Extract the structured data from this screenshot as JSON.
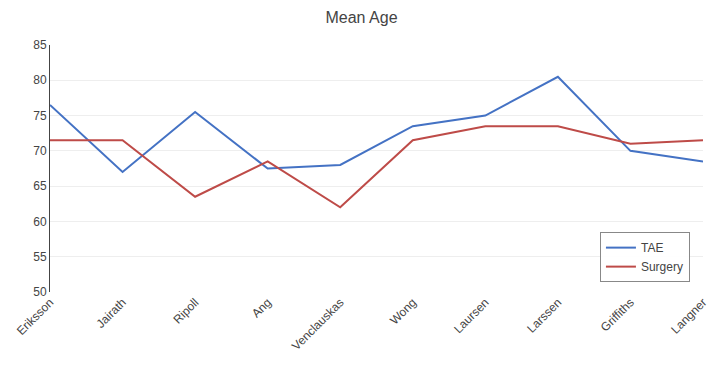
{
  "chart_data": {
    "type": "line",
    "title": "Mean Age",
    "categories": [
      "Eriksson",
      "Jairath",
      "Ripoll",
      "Ang",
      "Venclauskas",
      "Wong",
      "Laursen",
      "Larssen",
      "Griffiths",
      "Langner"
    ],
    "series": [
      {
        "name": "TAE",
        "color": "#4472C4",
        "values": [
          76.5,
          67.0,
          75.5,
          67.5,
          68.0,
          73.5,
          75.0,
          80.5,
          70.0,
          68.5
        ]
      },
      {
        "name": "Surgery",
        "color": "#BE4B48",
        "values": [
          71.5,
          71.5,
          63.5,
          68.5,
          62.0,
          71.5,
          73.5,
          73.5,
          71.0,
          71.5
        ]
      }
    ],
    "ylim": [
      50,
      85
    ],
    "yticks": [
      50,
      55,
      60,
      65,
      70,
      75,
      80,
      85
    ],
    "grid": true,
    "legend": "lower right"
  }
}
